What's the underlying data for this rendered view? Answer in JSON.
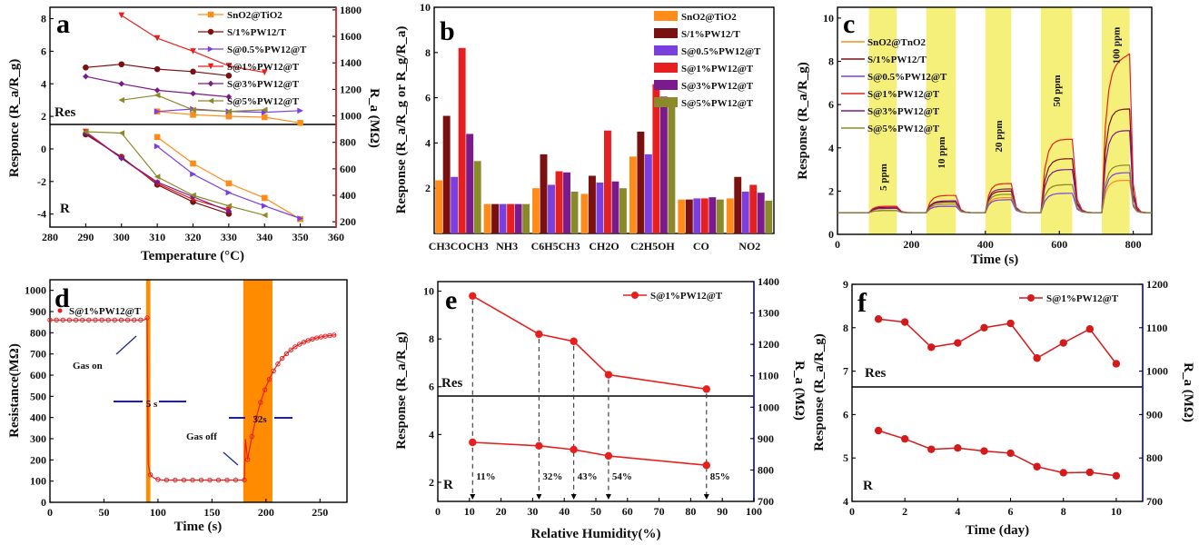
{
  "colors": {
    "orange": "#ff8c1a",
    "darkred": "#7a1010",
    "purple": "#7b3fe0",
    "red": "#e81f1f",
    "violet": "#7a1a8c",
    "olive": "#8a8a2a",
    "yellow": "#f5f07a",
    "blue": "#1a1acc",
    "gasband": "#ff8c00",
    "panel_f": "#d41a1a"
  },
  "chart_data": [
    {
      "panel": "a",
      "type": "line",
      "xlabel": "Temperature (°C)",
      "ylabel_left": "Responce (R_a/R_g)",
      "ylabel_right": "R_a (MΩ)",
      "xlim": [
        280,
        360
      ],
      "xticks": [
        "280",
        "290",
        "300",
        "310",
        "320",
        "330",
        "340",
        "350",
        "360"
      ],
      "ylim_left": [
        -4.8,
        8.7
      ],
      "yticks_left": [
        "-4",
        "-2",
        "0",
        "2",
        "4",
        "6",
        "8"
      ],
      "ylim_right": [
        160,
        1820
      ],
      "yticks_right": [
        "200",
        "400",
        "600",
        "800",
        "1000",
        "1200",
        "1400",
        "1600",
        "1800"
      ],
      "upper_label": "Res",
      "lower_label": "R",
      "legend": [
        "SnO2@TiO2",
        "S/1%PW12/T",
        "S@0.5%PW12@T",
        "S@1%PW12@T",
        "S@3%PW12@T",
        "S@5%PW12@T"
      ],
      "response_series": [
        {
          "name": "SnO2@TiO2",
          "x": [
            310,
            320,
            330,
            340,
            350
          ],
          "y": [
            2.3,
            2.1,
            2.0,
            1.95,
            1.6
          ]
        },
        {
          "name": "S/1%PW12/T",
          "x": [
            290,
            300,
            310,
            320,
            330
          ],
          "y": [
            5.0,
            5.2,
            4.9,
            4.75,
            4.5
          ]
        },
        {
          "name": "S@0.5%PW12@T",
          "x": [
            310,
            320,
            330,
            340,
            350
          ],
          "y": [
            2.3,
            2.45,
            2.3,
            2.25,
            2.35
          ]
        },
        {
          "name": "S@1%PW12@T",
          "x": [
            300,
            310,
            320,
            330,
            340
          ],
          "y": [
            8.2,
            6.8,
            6.0,
            5.1,
            4.7
          ]
        },
        {
          "name": "S@3%PW12@T",
          "x": [
            290,
            300,
            310,
            320,
            330
          ],
          "y": [
            4.45,
            4.0,
            3.6,
            3.4,
            3.2
          ]
        },
        {
          "name": "S@5%PW12@T",
          "x": [
            300,
            310,
            320,
            330,
            340
          ],
          "y": [
            3.0,
            3.3,
            2.4,
            2.3,
            2.4
          ]
        }
      ],
      "ra_series": [
        {
          "name": "SnO2@TiO2",
          "x": [
            310,
            320,
            330,
            340,
            350
          ],
          "y": [
            840,
            640,
            490,
            380,
            220
          ]
        },
        {
          "name": "S/1%PW12/T",
          "x": [
            290,
            300,
            310,
            320,
            330
          ],
          "y": [
            860,
            690,
            480,
            350,
            260
          ]
        },
        {
          "name": "S@0.5%PW12@T",
          "x": [
            310,
            320,
            330,
            340,
            350
          ],
          "y": [
            770,
            560,
            420,
            320,
            225
          ]
        },
        {
          "name": "S@1%PW12@T",
          "x": [
            290,
            300,
            310,
            320,
            330
          ],
          "y": [
            880,
            680,
            490,
            370,
            290
          ]
        },
        {
          "name": "S@3%PW12@T",
          "x": [
            290,
            300,
            310,
            320,
            330
          ],
          "y": [
            870,
            680,
            500,
            390,
            280
          ]
        },
        {
          "name": "S@5%PW12@T",
          "x": [
            290,
            300,
            310,
            320,
            330,
            340
          ],
          "y": [
            880,
            870,
            540,
            400,
            320,
            250
          ]
        }
      ]
    },
    {
      "panel": "b",
      "type": "bar",
      "ylabel": "Response (R_a/R_g or R_g/R_a)",
      "ylim": [
        0,
        10
      ],
      "yticks": [
        "2",
        "4",
        "6",
        "8",
        "10"
      ],
      "categories": [
        "CH3COCH3",
        "NH3",
        "C6H5CH3",
        "CH2O",
        "C2H5OH",
        "CO",
        "NO2"
      ],
      "series": [
        {
          "name": "SnO2@TiO2",
          "values": [
            2.35,
            1.3,
            2.0,
            1.75,
            3.4,
            1.5,
            1.55
          ]
        },
        {
          "name": "S/1%PW12/T",
          "values": [
            5.2,
            1.3,
            3.5,
            2.55,
            4.5,
            1.5,
            2.5
          ]
        },
        {
          "name": "S@0.5%PW12@T",
          "values": [
            2.5,
            1.3,
            2.15,
            2.25,
            3.5,
            1.55,
            1.85
          ]
        },
        {
          "name": "S@1%PW12@T",
          "values": [
            8.2,
            1.3,
            2.75,
            4.55,
            6.6,
            1.55,
            2.15
          ]
        },
        {
          "name": "S@3%PW12@T",
          "values": [
            4.4,
            1.3,
            2.7,
            2.3,
            6.05,
            1.6,
            1.8
          ]
        },
        {
          "name": "S@5%PW12@T",
          "values": [
            3.2,
            1.3,
            1.85,
            2.0,
            5.65,
            1.5,
            1.45
          ]
        }
      ]
    },
    {
      "panel": "c",
      "type": "line",
      "xlabel": "Time (s)",
      "ylabel": "Response (R_a/R_g)",
      "xlim": [
        0,
        850
      ],
      "xticks": [
        "0",
        "200",
        "400",
        "600",
        "800"
      ],
      "ylim": [
        0,
        10.5
      ],
      "yticks": [
        "0",
        "2",
        "4",
        "6",
        "8",
        "10"
      ],
      "gas_on": [
        [
          85,
          160
        ],
        [
          240,
          320
        ],
        [
          400,
          470
        ],
        [
          550,
          635
        ],
        [
          715,
          790
        ]
      ],
      "concentrations": [
        "5 ppm",
        "10 ppm",
        "20 ppm",
        "50 ppm",
        "100 ppm"
      ],
      "series": [
        {
          "name": "SnO2@TnO2",
          "peaks": [
            1.1,
            1.3,
            1.7,
            2.3,
            2.5
          ]
        },
        {
          "name": "S/1%PW12/T",
          "peaks": [
            1.25,
            1.5,
            2.0,
            3.5,
            5.8
          ]
        },
        {
          "name": "S@0.5%PW12@T",
          "peaks": [
            1.1,
            1.3,
            1.6,
            1.9,
            2.85
          ]
        },
        {
          "name": "S@1%PW12@T",
          "peaks": [
            1.3,
            1.8,
            2.35,
            4.4,
            8.35
          ]
        },
        {
          "name": "S@3%PW12@T",
          "peaks": [
            1.2,
            1.55,
            2.1,
            3.0,
            4.8
          ]
        },
        {
          "name": "S@5%PW12@T",
          "peaks": [
            1.1,
            1.4,
            1.85,
            2.3,
            3.2
          ]
        }
      ]
    },
    {
      "panel": "d",
      "type": "line",
      "xlabel": "Time (s)",
      "ylabel": "Resistance(MΩ)",
      "xlim": [
        0,
        275
      ],
      "xticks": [
        "0",
        "50",
        "100",
        "150",
        "200",
        "250"
      ],
      "ylim": [
        0,
        1050
      ],
      "yticks": [
        "0",
        "100",
        "200",
        "300",
        "400",
        "500",
        "600",
        "700",
        "800",
        "900",
        "1000"
      ],
      "series_name": "S@1%PW12@T",
      "baseline": 860,
      "gas_on_time": 90,
      "low": 105,
      "gas_off_time": 180,
      "recovered": 800,
      "annotations": [
        "Gas on",
        "5 s",
        "Gas off",
        "32s"
      ]
    },
    {
      "panel": "e",
      "type": "line",
      "xlabel": "Relative Humidity(%)",
      "ylabel_left": "Response (R_a/R_g)",
      "ylabel_right": "R_a (MΩ)",
      "xlim": [
        0,
        100
      ],
      "xticks": [
        "0",
        "10",
        "20",
        "30",
        "40",
        "50",
        "60",
        "70",
        "80",
        "90",
        "100"
      ],
      "ylim_left": [
        1.2,
        10.4
      ],
      "yticks_left": [
        "2",
        "4",
        "6",
        "8",
        "10"
      ],
      "ylim_right": [
        700,
        1400
      ],
      "yticks_right": [
        "700",
        "800",
        "900",
        "1000",
        "1100",
        "1200",
        "1300",
        "1400"
      ],
      "series_name": "S@1%PW12@T",
      "x": [
        11,
        32,
        43,
        54,
        85
      ],
      "response": [
        9.8,
        8.2,
        7.9,
        6.5,
        5.9
      ],
      "ra": [
        888,
        877,
        865,
        845,
        815
      ],
      "point_labels": [
        "11%",
        "32%",
        "43%",
        "54%",
        "85%"
      ],
      "upper_label": "Res",
      "lower_label": "R"
    },
    {
      "panel": "f",
      "type": "line",
      "xlabel": "Time (day)",
      "ylabel_left": "Response (R_a/R_g)",
      "ylabel_right": "R_a (MΩ)",
      "xlim": [
        0,
        11
      ],
      "xticks": [
        "0",
        "2",
        "4",
        "6",
        "8",
        "10"
      ],
      "ylim_left": [
        4,
        9
      ],
      "yticks_left": [
        "4",
        "5",
        "6",
        "7",
        "8",
        "9"
      ],
      "ylim_right": [
        700,
        1200
      ],
      "yticks_right": [
        "700",
        "800",
        "900",
        "1000",
        "1100",
        "1200"
      ],
      "series_name": "S@1%PW12@T",
      "x": [
        1,
        2,
        3,
        4,
        5,
        6,
        7,
        8,
        9,
        10
      ],
      "response": [
        8.2,
        8.13,
        7.55,
        7.65,
        8.0,
        8.1,
        7.3,
        7.65,
        7.97,
        7.17
      ],
      "ra": [
        863,
        844,
        820,
        823,
        816,
        811,
        780,
        766,
        767,
        759
      ],
      "upper_label": "Res",
      "lower_label": "R"
    }
  ]
}
